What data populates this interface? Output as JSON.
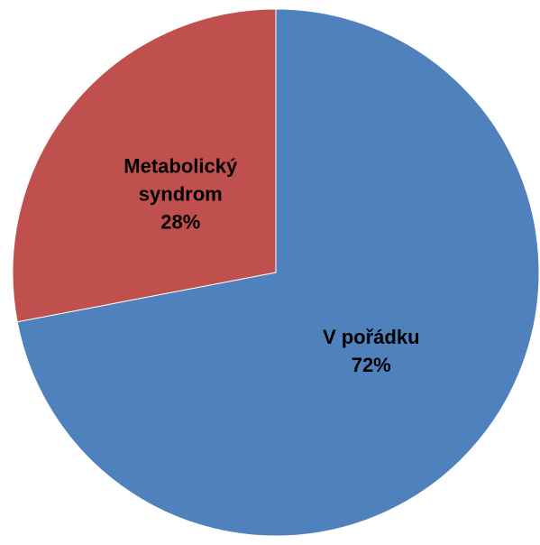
{
  "chart_data": {
    "type": "pie",
    "categories": [
      "V pořádku",
      "Metabolický syndrom"
    ],
    "values": [
      72,
      28
    ],
    "value_labels": [
      "72%",
      "28%"
    ],
    "colors": [
      "#4f81bd",
      "#c0504d"
    ]
  }
}
